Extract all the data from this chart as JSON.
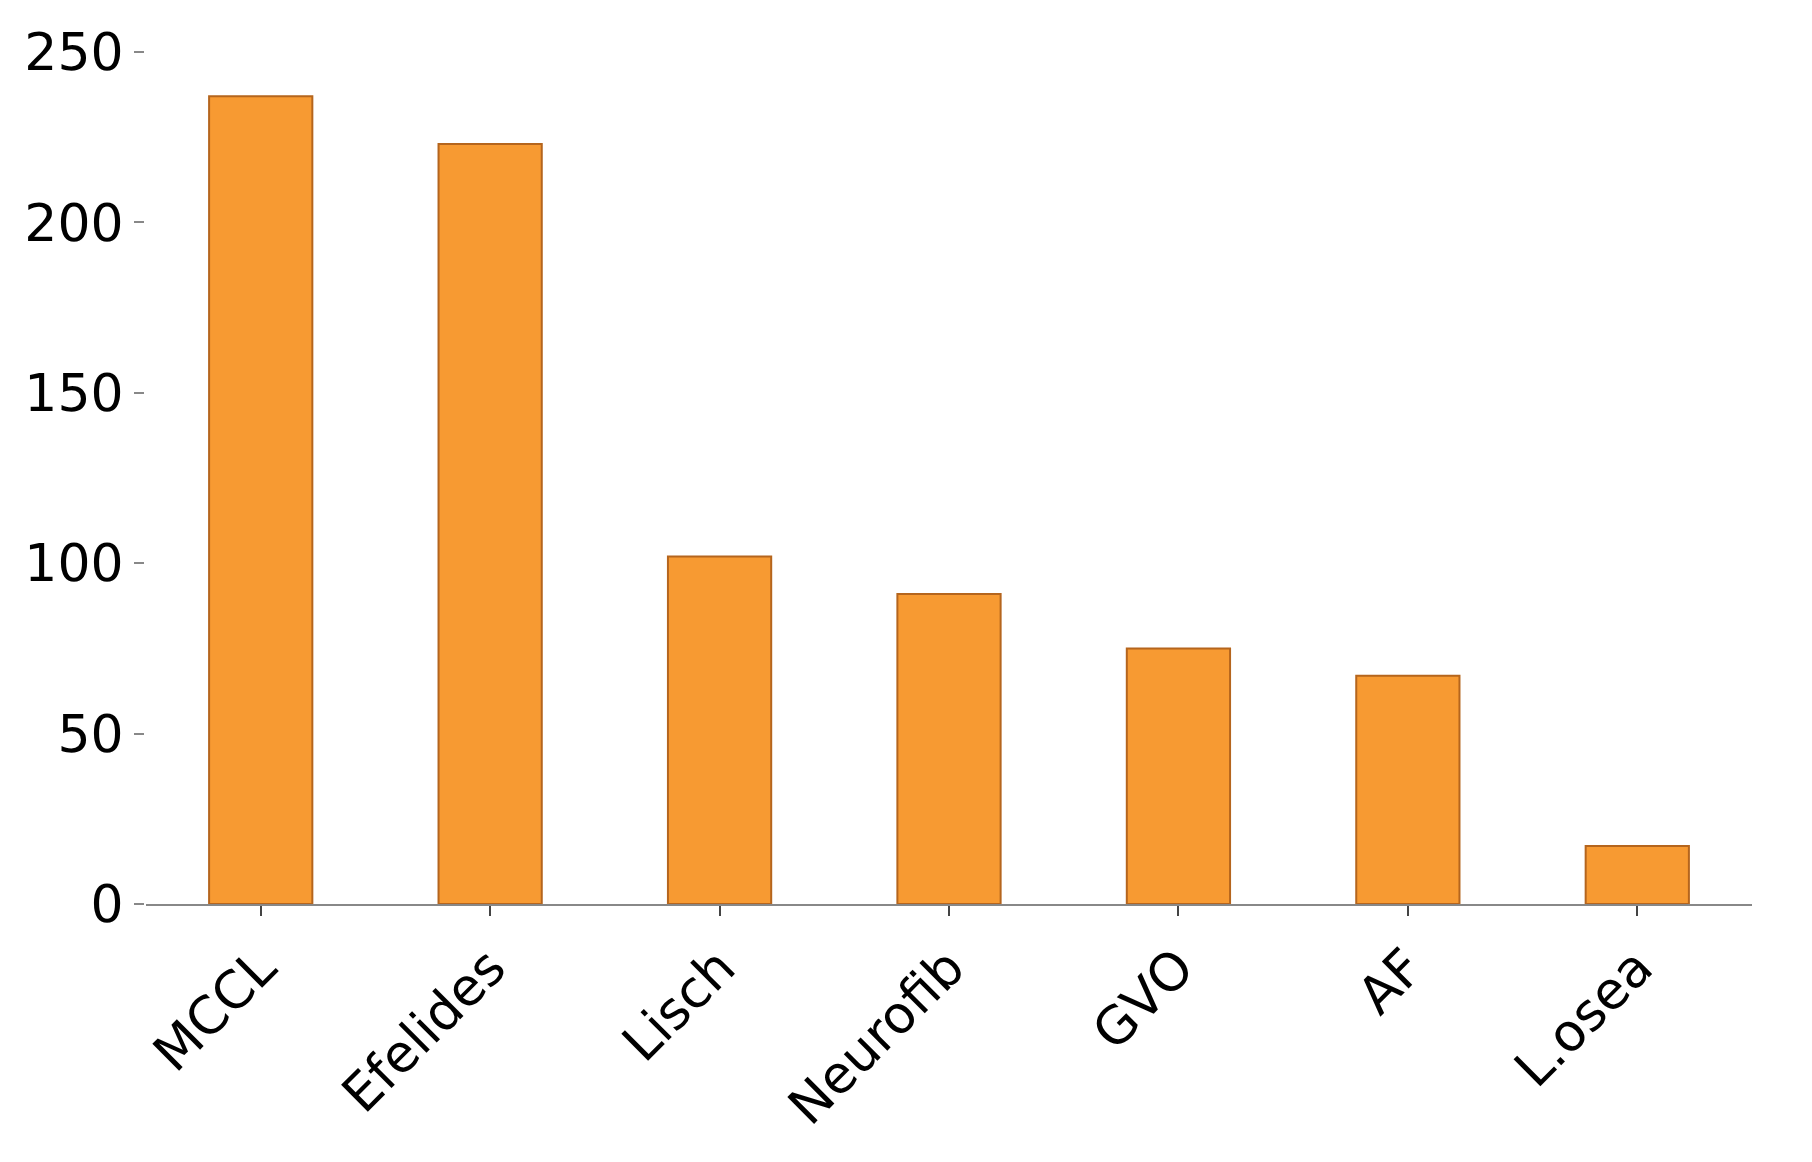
{
  "chart_data": {
    "type": "bar",
    "categories": [
      "MCCL",
      "Efelides",
      "Lisch",
      "Neurofib",
      "GVO",
      "AF",
      "L.osea"
    ],
    "values": [
      237,
      223,
      102,
      91,
      75,
      67,
      17
    ],
    "color": "#f79a32",
    "ylim": [
      0,
      250
    ],
    "yticks": [
      0,
      50,
      100,
      150,
      200,
      250
    ]
  }
}
